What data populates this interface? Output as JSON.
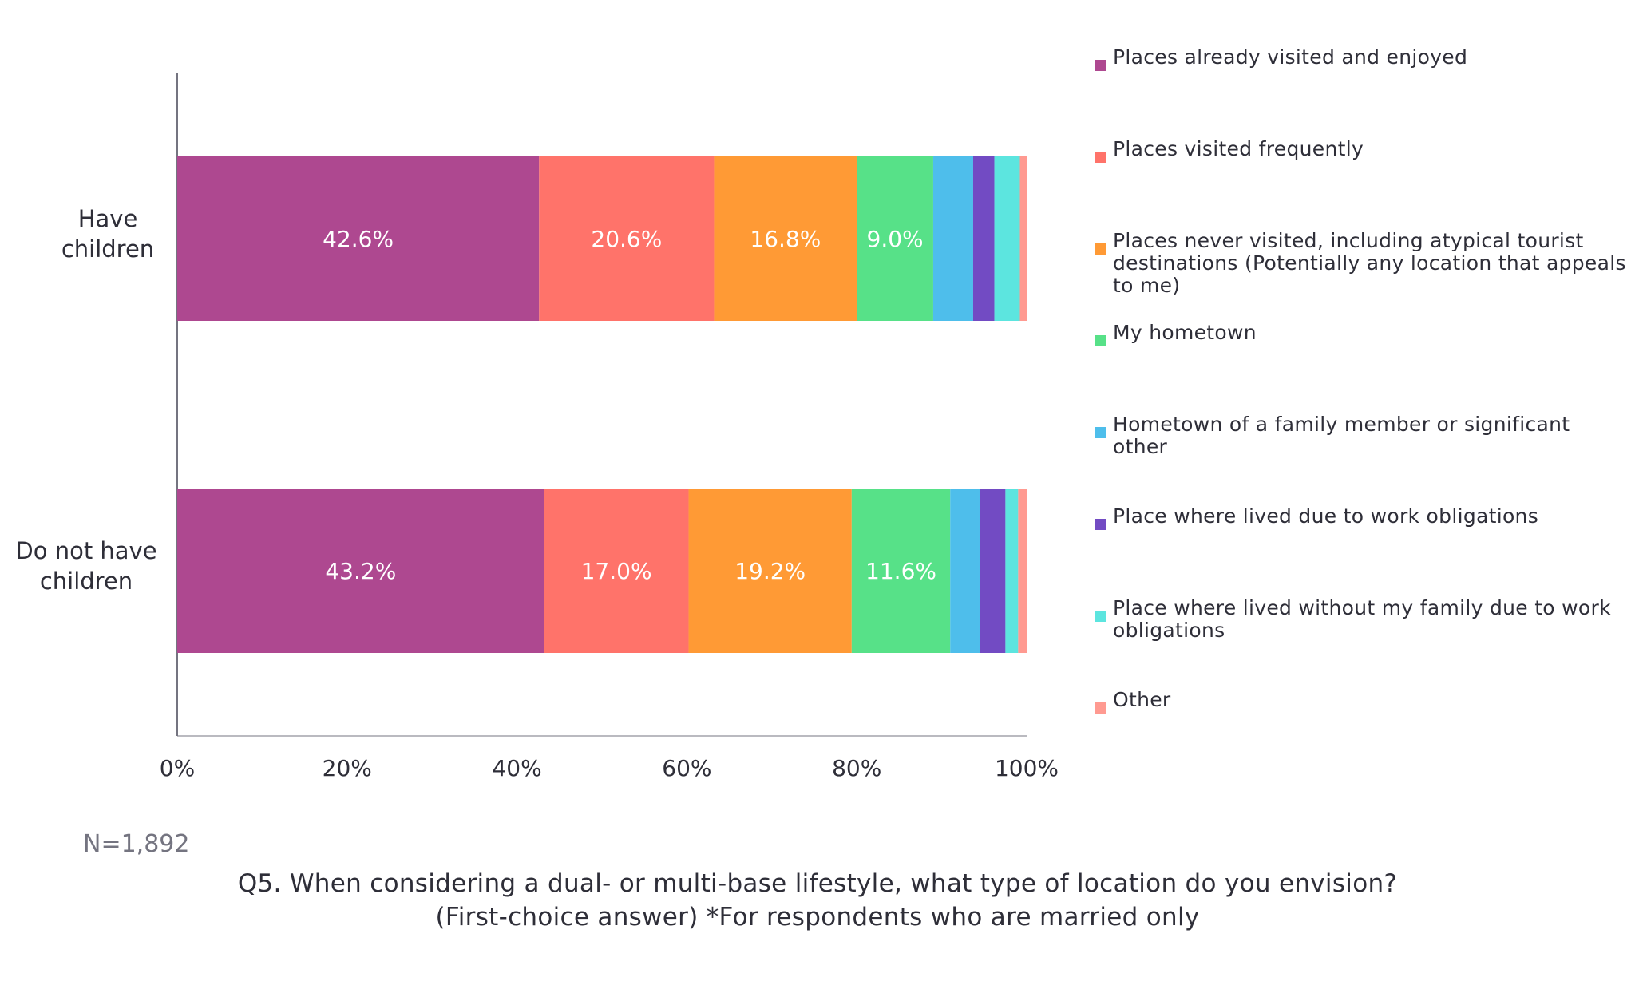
{
  "chart_data": {
    "type": "bar",
    "orientation": "horizontal",
    "stacked": true,
    "categories": [
      "Have children",
      "Do not have children"
    ],
    "series": [
      {
        "name": "Places already visited and enjoyed",
        "color": "#ae4890",
        "values": [
          42.6,
          43.2
        ],
        "labels": [
          "42.6%",
          "43.2%"
        ]
      },
      {
        "name": "Places visited frequently",
        "color": "#ff736a",
        "values": [
          20.6,
          17.0
        ],
        "labels": [
          "20.6%",
          "17.0%"
        ]
      },
      {
        "name": "Places never visited, including atypical tourist destinations (Potentially any location that appeals to me)",
        "color": "#ff9a35",
        "values": [
          16.8,
          19.2
        ],
        "labels": [
          "16.8%",
          "19.2%"
        ]
      },
      {
        "name": "My hometown",
        "color": "#57e188",
        "values": [
          9.0,
          11.6
        ],
        "labels": [
          "9.0%",
          "11.6%"
        ]
      },
      {
        "name": "Hometown of a family member or significant other",
        "color": "#4ebeeb",
        "values": [
          4.7,
          3.5
        ],
        "labels": [
          "",
          ""
        ]
      },
      {
        "name": "Place where lived due to work obligations",
        "color": "#724bc3",
        "values": [
          2.5,
          3.0
        ],
        "labels": [
          "",
          ""
        ]
      },
      {
        "name": "Place where lived without my family due to work obligations",
        "color": "#5ce5df",
        "values": [
          3.0,
          1.5
        ],
        "labels": [
          "",
          ""
        ]
      },
      {
        "name": "Other",
        "color": "#ff9a91",
        "values": [
          0.8,
          1.0
        ],
        "labels": [
          "",
          ""
        ]
      }
    ],
    "x_ticks": [
      "0%",
      "20%",
      "40%",
      "60%",
      "80%",
      "100%"
    ],
    "xlim": [
      0,
      100
    ],
    "legend_position": "right",
    "grid": false
  },
  "note": "N=1,892",
  "caption": {
    "line1": "Q5. When considering a dual- or multi-base lifestyle, what type of location do you envision?",
    "line2": "(First-choice answer) *For respondents who are married only"
  }
}
